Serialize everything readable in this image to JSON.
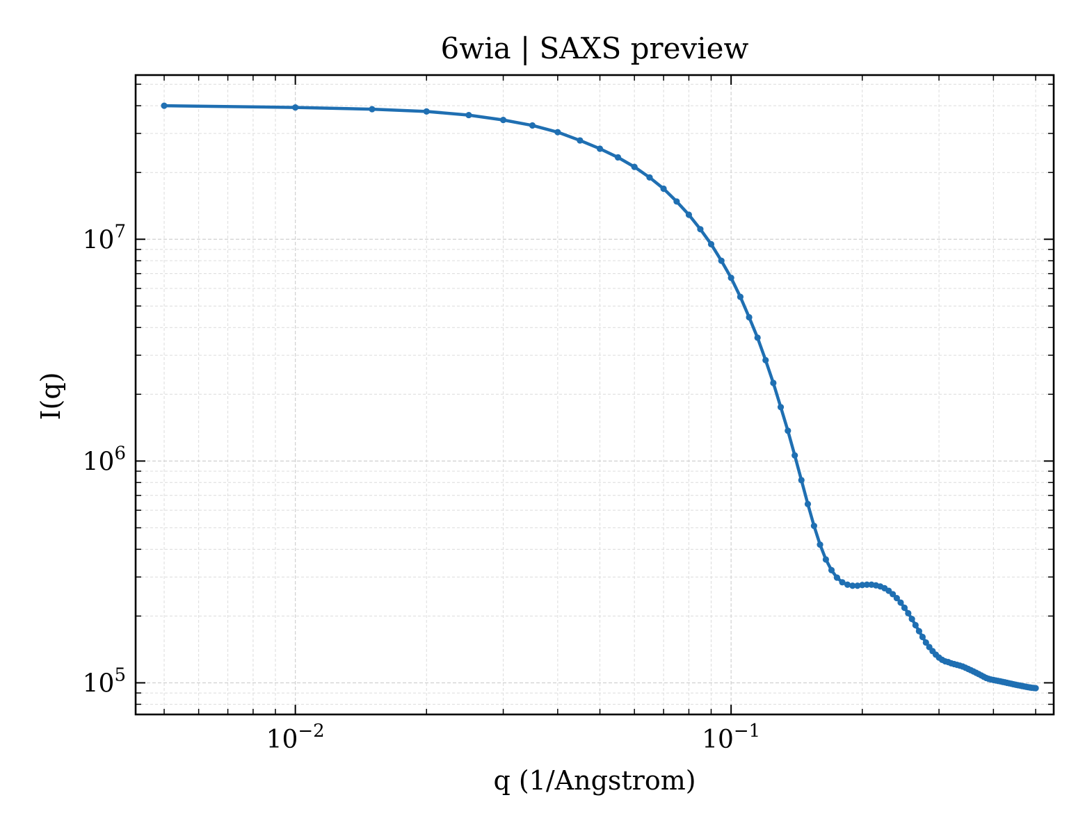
{
  "chart_data": {
    "type": "line",
    "title": "6wia | SAXS preview",
    "xlabel": "q (1/Angstrom)",
    "ylabel": "I(q)",
    "xscale": "log",
    "yscale": "log",
    "xlim": [
      0.0043,
      0.55
    ],
    "ylim": [
      72000,
      55000000
    ],
    "grid": true,
    "legend": "none",
    "x_ticks": [
      {
        "value": 0.01,
        "base": "10",
        "exp": "−2"
      },
      {
        "value": 0.1,
        "base": "10",
        "exp": "−1"
      }
    ],
    "y_ticks": [
      {
        "value": 100000,
        "base": "10",
        "exp": "5"
      },
      {
        "value": 1000000,
        "base": "10",
        "exp": "6"
      },
      {
        "value": 10000000,
        "base": "10",
        "exp": "7"
      }
    ],
    "series": [
      {
        "color": "#1f6fb2",
        "x": [
          0.005,
          0.01,
          0.015,
          0.02,
          0.025,
          0.03,
          0.035,
          0.04,
          0.045,
          0.05,
          0.055,
          0.06,
          0.065,
          0.07,
          0.075,
          0.08,
          0.085,
          0.09,
          0.095,
          0.1,
          0.105,
          0.11,
          0.115,
          0.12,
          0.125,
          0.13,
          0.135,
          0.14,
          0.145,
          0.15,
          0.155,
          0.16,
          0.165,
          0.17,
          0.175,
          0.18,
          0.185,
          0.19,
          0.195,
          0.2,
          0.205,
          0.21,
          0.215,
          0.22,
          0.225,
          0.23,
          0.235,
          0.24,
          0.245,
          0.25,
          0.255,
          0.26,
          0.265,
          0.27,
          0.275,
          0.28,
          0.285,
          0.29,
          0.295,
          0.3,
          0.305,
          0.31,
          0.315,
          0.32,
          0.325,
          0.33,
          0.335,
          0.34,
          0.345,
          0.35,
          0.355,
          0.36,
          0.365,
          0.37,
          0.375,
          0.38,
          0.385,
          0.39,
          0.395,
          0.4,
          0.405,
          0.41,
          0.415,
          0.42,
          0.425,
          0.43,
          0.435,
          0.44,
          0.445,
          0.45,
          0.455,
          0.46,
          0.465,
          0.47,
          0.475,
          0.48,
          0.485,
          0.49,
          0.495,
          0.5
        ],
        "y": [
          40000000,
          39300000,
          38600000,
          37700000,
          36300000,
          34500000,
          32600000,
          30400000,
          27900000,
          25600000,
          23400000,
          21200000,
          19000000,
          16900000,
          14800000,
          12900000,
          11100000,
          9500000,
          8000000,
          6700000,
          5500000,
          4450000,
          3600000,
          2850000,
          2250000,
          1750000,
          1370000,
          1060000,
          820000,
          640000,
          510000,
          420000,
          360000,
          322000,
          298000,
          284000,
          277000,
          274000,
          274000,
          276000,
          277000,
          277000,
          275000,
          272000,
          267000,
          260000,
          251000,
          241000,
          230000,
          218000,
          206000,
          194000,
          182000,
          171000,
          161000,
          152000,
          145000,
          139000,
          134000,
          130000,
          127000,
          125000,
          124000,
          122500,
          121500,
          120500,
          119500,
          118500,
          117000,
          115500,
          114000,
          112500,
          111000,
          109500,
          108000,
          106500,
          105200,
          104200,
          103500,
          103000,
          102500,
          102000,
          101500,
          101000,
          100500,
          100000,
          99500,
          99000,
          98500,
          98000,
          97600,
          97200,
          96800,
          96400,
          96000,
          95600,
          95300,
          95000,
          94800,
          94600
        ]
      }
    ]
  }
}
